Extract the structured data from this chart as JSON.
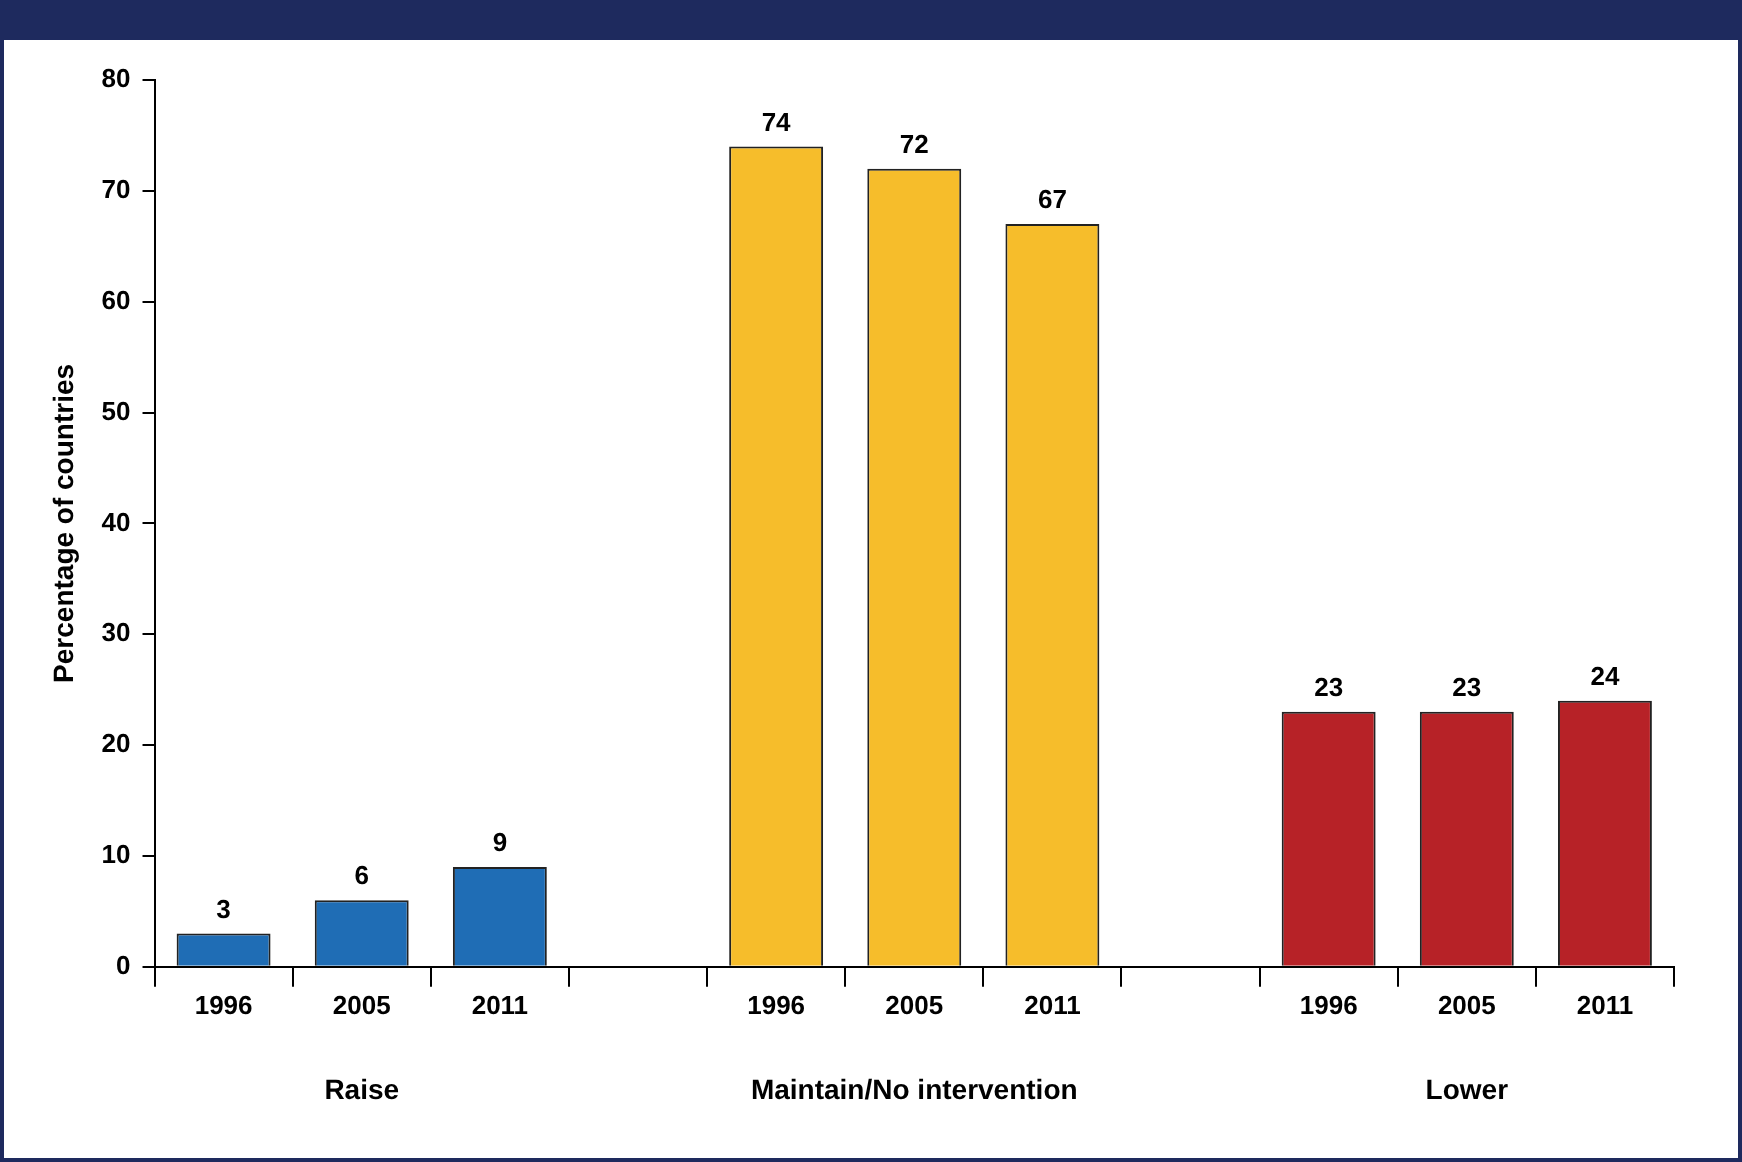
{
  "chart_data": {
    "type": "bar",
    "ylabel": "Percentage of countries",
    "categories": [
      "1996",
      "2005",
      "2011",
      null,
      "1996",
      "2005",
      "2011",
      null,
      "1996",
      "2005",
      "2011"
    ],
    "values": [
      3,
      6,
      9,
      null,
      74,
      72,
      67,
      null,
      23,
      23,
      24
    ],
    "colors": [
      "#1f6db5",
      "#1f6db5",
      "#1f6db5",
      "#1f6db5",
      "#f6bd2b",
      "#f6bd2b",
      "#f6bd2b",
      "#f6bd2b",
      "#b72227",
      "#b72227",
      "#b72227"
    ],
    "ylim": [
      0,
      80
    ],
    "yticks": [
      0,
      10,
      20,
      30,
      40,
      50,
      60,
      70,
      80
    ],
    "grid": false,
    "legend": false,
    "data_labels": true,
    "annotations": [
      "Raise",
      "Maintain/No intervention",
      "Lower"
    ]
  }
}
